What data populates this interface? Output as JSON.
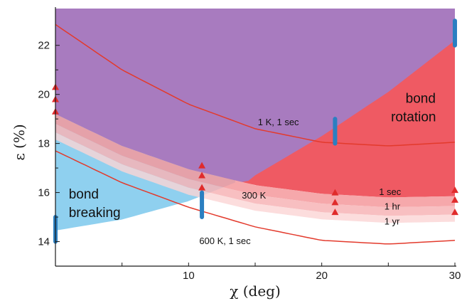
{
  "chart_data": {
    "type": "area",
    "xlabel": "χ (deg)",
    "ylabel": "ε (%)",
    "xlim": [
      0,
      30
    ],
    "ylim": [
      13,
      23.5
    ],
    "xticks": [
      10,
      20,
      30
    ],
    "yticks": [
      14,
      16,
      18,
      20,
      22
    ],
    "xtick_labels": [
      "10",
      "20",
      "30"
    ],
    "ytick_labels": [
      "14",
      "16",
      "18",
      "20",
      "22"
    ],
    "grid": false,
    "colors": {
      "bond_breaking": "#8fd0ef",
      "bond_rotation": "#ef5a63",
      "overlap": "#a87bbf",
      "band_1sec": "#f4999c",
      "band_1hr": "#f7b4b6",
      "band_1yr": "#fbd4d5",
      "isotherm_line": "#e33a2c",
      "dft_bar": "#2b7fc1",
      "marker": "#e02b2b"
    },
    "regions": {
      "bond_breaking": "bond breaking",
      "bond_rotation": "bond rotation"
    },
    "band_labels": [
      "1 sec",
      "1 hr",
      "1 yr"
    ],
    "temperature_label": "300 K",
    "series": [
      {
        "name": "1 K, 1 sec",
        "x": [
          0,
          5,
          10,
          15,
          20,
          25,
          30
        ],
        "y": [
          22.85,
          21.0,
          19.6,
          18.6,
          18.05,
          17.9,
          18.05
        ]
      },
      {
        "name": "600 K, 1 sec",
        "x": [
          0,
          5,
          10,
          15,
          20,
          25,
          30
        ],
        "y": [
          17.7,
          16.4,
          15.4,
          14.6,
          14.05,
          13.9,
          14.05
        ]
      }
    ],
    "bond_breaking_bound": {
      "x": [
        0,
        5,
        10,
        13
      ],
      "y": [
        14.45,
        14.9,
        15.65,
        16.3
      ]
    },
    "bond_rotation_bound": {
      "x": [
        12.5,
        15,
        20,
        25,
        30
      ],
      "y": [
        15.6,
        16.7,
        18.3,
        20.1,
        22.2
      ]
    },
    "band_edges": {
      "x": [
        0,
        5,
        10,
        15,
        20,
        25,
        30
      ],
      "lower_1sec": [
        19.2,
        17.9,
        16.95,
        16.3,
        15.95,
        15.8,
        15.85
      ],
      "lower_1hr": [
        18.8,
        17.5,
        16.55,
        15.9,
        15.55,
        15.4,
        15.45
      ],
      "lower_1yr": [
        18.45,
        17.15,
        16.2,
        15.55,
        15.2,
        15.05,
        15.1
      ]
    },
    "markers": [
      {
        "x": 0,
        "y": 20.3
      },
      {
        "x": 0,
        "y": 19.8
      },
      {
        "x": 0,
        "y": 19.3
      },
      {
        "x": 11,
        "y": 17.1
      },
      {
        "x": 11,
        "y": 16.7
      },
      {
        "x": 11,
        "y": 16.2
      },
      {
        "x": 21,
        "y": 16.0
      },
      {
        "x": 21,
        "y": 15.6
      },
      {
        "x": 21,
        "y": 15.2
      },
      {
        "x": 30,
        "y": 16.1
      },
      {
        "x": 30,
        "y": 15.7
      },
      {
        "x": 30,
        "y": 15.2
      }
    ],
    "bars": [
      {
        "x": 0,
        "y_low": 14.0,
        "y_high": 15.0
      },
      {
        "x": 11,
        "y_low": 15.0,
        "y_high": 16.0
      },
      {
        "x": 21,
        "y_low": 18.0,
        "y_high": 19.0
      },
      {
        "x": 30,
        "y_low": 22.0,
        "y_high": 23.0
      }
    ]
  }
}
